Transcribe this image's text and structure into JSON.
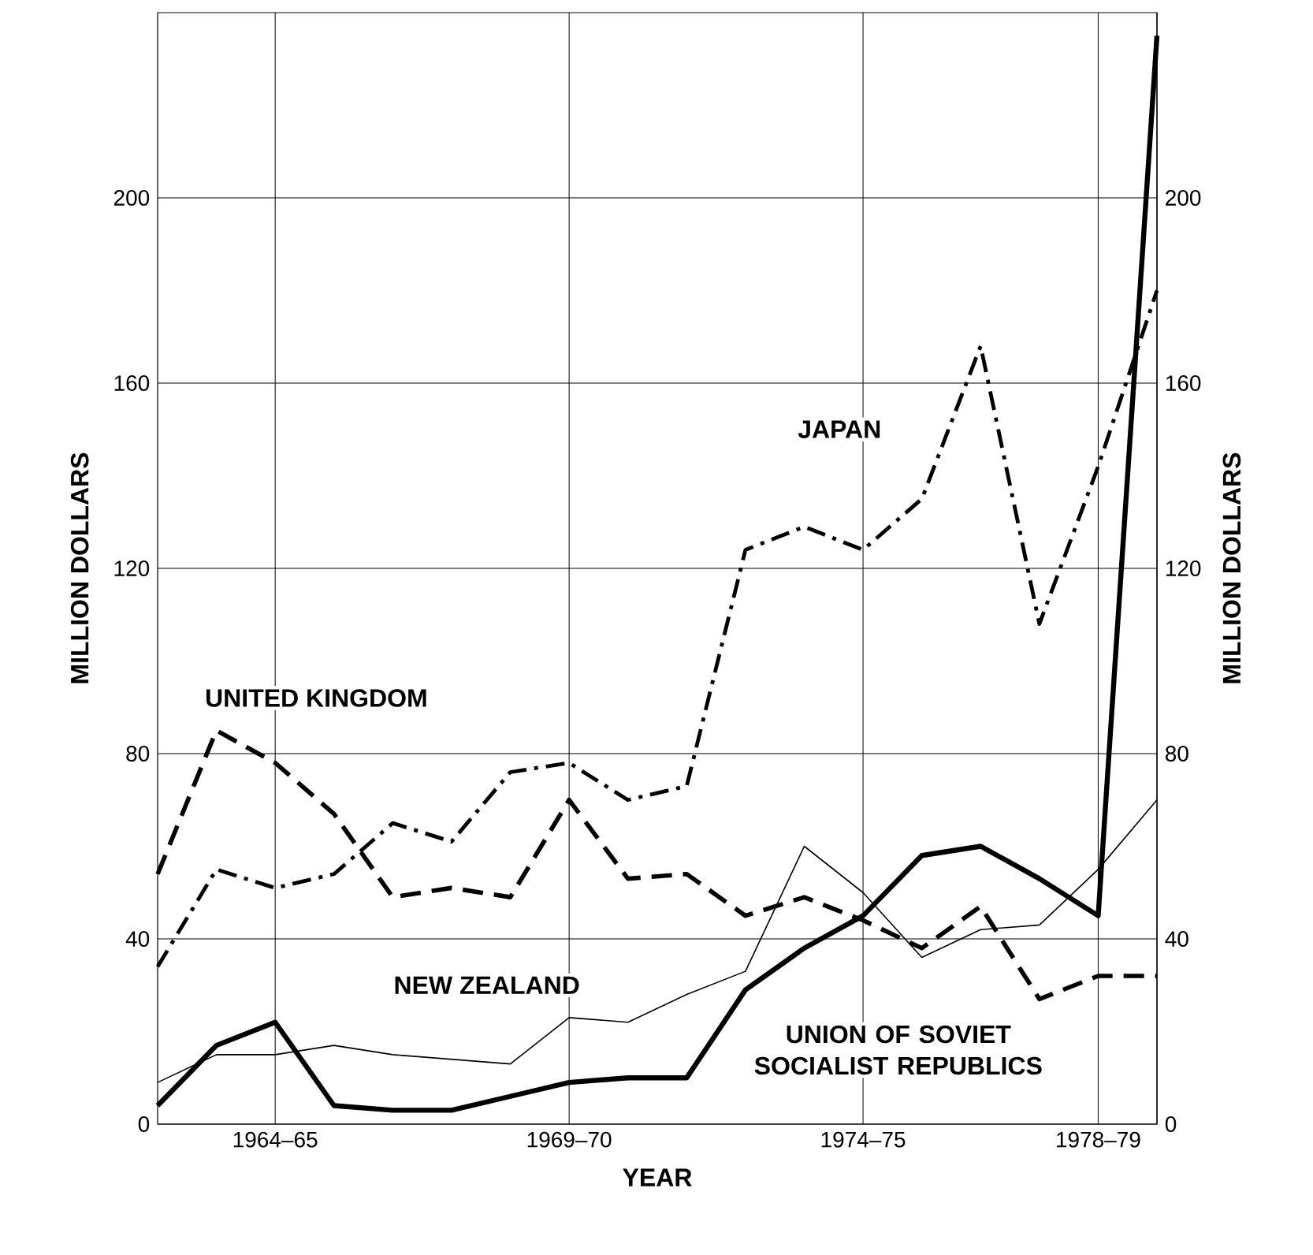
{
  "chart_data": {
    "type": "line",
    "xlabel": "YEAR",
    "ylabel": "MILLION DOLLARS",
    "y2label": "MILLION DOLLARS",
    "categories": [
      null,
      null,
      "1964–65",
      null,
      null,
      null,
      null,
      "1969–70",
      null,
      null,
      null,
      null,
      "1974–75",
      null,
      null,
      null,
      "1978–79",
      null
    ],
    "ylim": [
      0,
      240
    ],
    "yticks": [
      0,
      40,
      80,
      120,
      160,
      200
    ],
    "y2lim": [
      0,
      240
    ],
    "y2ticks": [
      0,
      40,
      80,
      120,
      160,
      200
    ],
    "grid": true,
    "marker": "none",
    "series": [
      {
        "name": "UNION OF SOVIET SOCIALIST REPUBLICS",
        "color": "#000000",
        "line_style": "solid",
        "values": [
          4,
          17,
          22,
          4,
          3,
          3,
          6,
          9,
          10,
          10,
          29,
          38,
          45,
          58,
          60,
          53,
          45,
          235
        ]
      },
      {
        "name": "JAPAN",
        "color": "#000000",
        "line_style": "dashdot",
        "values": [
          34,
          55,
          51,
          54,
          65,
          61,
          76,
          78,
          70,
          73,
          124,
          129,
          124,
          135,
          168,
          108,
          142,
          180
        ]
      },
      {
        "name": "UNITED KINGDOM",
        "color": "#000000",
        "line_style": "dashed",
        "values": [
          54,
          85,
          78,
          67,
          49,
          51,
          49,
          70,
          53,
          54,
          45,
          49,
          44,
          38,
          47,
          27,
          32,
          32
        ]
      },
      {
        "name": "NEW ZEALAND",
        "color": "#000000",
        "line_style": "solid",
        "values": [
          9,
          15,
          15,
          17,
          15,
          14,
          13,
          23,
          22,
          28,
          33,
          60,
          50,
          36,
          42,
          43,
          55,
          70
        ]
      }
    ]
  }
}
